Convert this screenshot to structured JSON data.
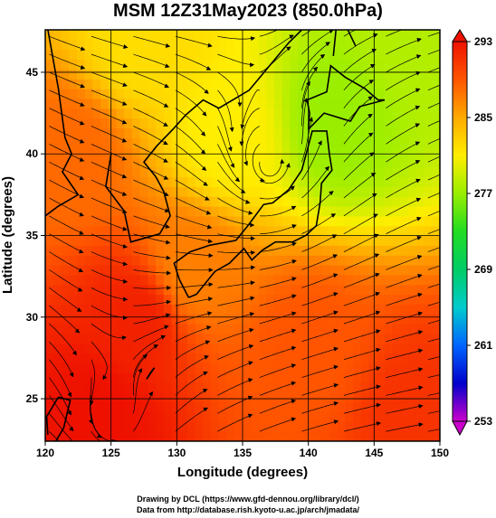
{
  "title": "MSM 12Z31May2023 (850.0hPa)",
  "credits": {
    "line1": "Drawing by DCL (https://www.gfd-dennou.org/library/dcl/)",
    "line2": "Data from http://database.rish.kyoto-u.ac.jp/arch/jmadata/"
  },
  "chart_data": {
    "type": "heatmap",
    "title": "MSM 12Z31May2023 (850.0hPa)",
    "xlabel": "Longitude (degrees)",
    "ylabel": "Latitude  (degrees)",
    "xlim": [
      120,
      150
    ],
    "ylim": [
      22.4,
      47.6
    ],
    "x_ticks": [
      120,
      125,
      130,
      135,
      140,
      145,
      150
    ],
    "x_tick_labels": [
      "120",
      "125",
      "130",
      "135",
      "140",
      "145",
      "150"
    ],
    "y_ticks": [
      25,
      30,
      35,
      40,
      45
    ],
    "y_tick_labels": [
      "25",
      "30",
      "35",
      "40",
      "45"
    ],
    "colorbar": {
      "min": 253,
      "max": 293,
      "ticks": [
        253,
        261,
        269,
        277,
        285,
        293
      ],
      "tick_labels": [
        "253",
        "261",
        "269",
        "277",
        "285",
        "293"
      ],
      "colors": [
        "#cc00cc",
        "#0000cc",
        "#0066ff",
        "#00cccc",
        "#00cc66",
        "#22dd22",
        "#99ee00",
        "#ffee00",
        "#ffaa00",
        "#ff5500",
        "#ee1100"
      ]
    },
    "temperature_centers": [
      {
        "lon": 124,
        "lat": 24,
        "value": 293
      },
      {
        "lon": 127,
        "lat": 30,
        "value": 292
      },
      {
        "lon": 148,
        "lat": 24,
        "value": 291
      },
      {
        "lon": 140,
        "lat": 28,
        "value": 289
      },
      {
        "lon": 122,
        "lat": 40,
        "value": 288
      },
      {
        "lon": 131,
        "lat": 33,
        "value": 287
      },
      {
        "lon": 134,
        "lat": 41,
        "value": 281
      },
      {
        "lon": 142,
        "lat": 42,
        "value": 277
      },
      {
        "lon": 148,
        "lat": 47,
        "value": 278
      },
      {
        "lon": 127,
        "lat": 47,
        "value": 282
      }
    ],
    "wind_vortices": [
      {
        "lon": 125,
        "lat": 23.5,
        "direction": "counterclockwise"
      },
      {
        "lon": 137,
        "lat": 39.3,
        "direction": "counterclockwise"
      }
    ],
    "grid": true
  }
}
